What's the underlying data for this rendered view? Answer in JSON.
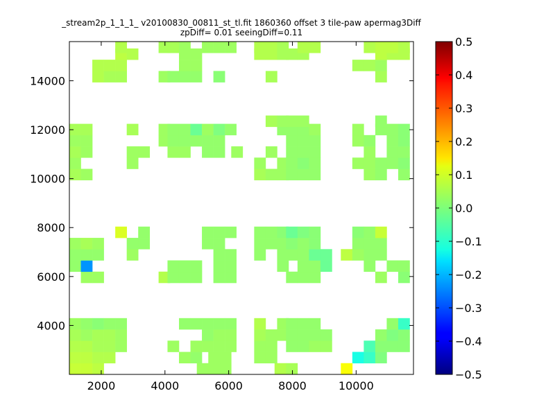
{
  "chart_data": {
    "type": "heatmap",
    "title": "_stream2p_1_1_1_ v20100830_00811_st_tl.fit 1860360 offset 3 tile-paw apermag3Diff",
    "subtitle": "zpDiff= 0.01 seeingDiff=0.11",
    "xlabel": "",
    "ylabel": "",
    "xlim": [
      1000,
      11800
    ],
    "ylim": [
      2000,
      15600
    ],
    "x_ticks": [
      "2000",
      "4000",
      "6000",
      "8000",
      "10000"
    ],
    "y_ticks": [
      "4000",
      "6000",
      "8000",
      "10000",
      "12000",
      "14000"
    ],
    "colorbar": {
      "colormap": "jet",
      "range": [
        -0.5,
        0.5
      ],
      "ticks": [
        "0.5",
        "0.4",
        "0.3",
        "0.2",
        "0.1",
        "0.0",
        "−0.1",
        "−0.2",
        "−0.3",
        "−0.4",
        "−0.5"
      ]
    },
    "cell_size": [
      360,
      460
    ],
    "cells": [
      [
        1000,
        2000,
        0.07
      ],
      [
        1360,
        2000,
        0.07
      ],
      [
        1720,
        2000,
        0.06
      ],
      [
        5000,
        2000,
        0.03
      ],
      [
        5360,
        2000,
        0.03
      ],
      [
        5720,
        2000,
        0.03
      ],
      [
        7440,
        2000,
        0.05
      ],
      [
        7800,
        2000,
        0.04
      ],
      [
        9520,
        2000,
        0.12
      ],
      [
        1000,
        2460,
        0.06
      ],
      [
        1360,
        2460,
        0.06
      ],
      [
        1720,
        2460,
        0.05
      ],
      [
        2080,
        2460,
        0.05
      ],
      [
        4440,
        2460,
        0.03
      ],
      [
        4800,
        2460,
        0.02
      ],
      [
        5360,
        2460,
        0.03
      ],
      [
        5720,
        2460,
        0.03
      ],
      [
        6800,
        2460,
        0.03
      ],
      [
        7160,
        2460,
        0.03
      ],
      [
        9880,
        2460,
        -0.1
      ],
      [
        10240,
        2460,
        -0.07
      ],
      [
        10600,
        2460,
        0.0
      ],
      [
        1000,
        2920,
        0.05
      ],
      [
        1360,
        2920,
        0.05
      ],
      [
        1720,
        2920,
        0.04
      ],
      [
        2080,
        2920,
        0.04
      ],
      [
        2440,
        2920,
        0.03
      ],
      [
        4080,
        2920,
        0.03
      ],
      [
        4800,
        2920,
        0.03
      ],
      [
        5160,
        2920,
        0.03
      ],
      [
        5520,
        2920,
        0.03
      ],
      [
        5880,
        2920,
        0.03
      ],
      [
        6800,
        2920,
        0.03
      ],
      [
        7160,
        2920,
        0.03
      ],
      [
        7800,
        2920,
        0.02
      ],
      [
        8160,
        2920,
        0.02
      ],
      [
        8520,
        2920,
        0.03
      ],
      [
        8880,
        2920,
        0.03
      ],
      [
        10240,
        2920,
        -0.05
      ],
      [
        10600,
        2920,
        0.01
      ],
      [
        10960,
        2920,
        0.01
      ],
      [
        11320,
        2920,
        0.01
      ],
      [
        1000,
        3380,
        0.04
      ],
      [
        1360,
        3380,
        0.03
      ],
      [
        1720,
        3380,
        0.04
      ],
      [
        2080,
        3380,
        0.04
      ],
      [
        2440,
        3380,
        0.03
      ],
      [
        5160,
        3380,
        0.02
      ],
      [
        5520,
        3380,
        0.03
      ],
      [
        5880,
        3380,
        0.03
      ],
      [
        6800,
        3380,
        0.04
      ],
      [
        7160,
        3380,
        0.03
      ],
      [
        7520,
        3380,
        0.03
      ],
      [
        7800,
        3380,
        0.02
      ],
      [
        8160,
        3380,
        0.02
      ],
      [
        8520,
        3380,
        0.02
      ],
      [
        8880,
        3380,
        0.02
      ],
      [
        10600,
        3380,
        0.02
      ],
      [
        10960,
        3380,
        0.0
      ],
      [
        11320,
        3380,
        0.01
      ],
      [
        1000,
        3840,
        0.03
      ],
      [
        1360,
        3840,
        0.02
      ],
      [
        1720,
        3840,
        0.01
      ],
      [
        2080,
        3840,
        0.02
      ],
      [
        2440,
        3840,
        0.02
      ],
      [
        4440,
        3840,
        0.02
      ],
      [
        4800,
        3840,
        0.02
      ],
      [
        5160,
        3840,
        0.02
      ],
      [
        5520,
        3840,
        0.02
      ],
      [
        5880,
        3840,
        0.02
      ],
      [
        6800,
        3840,
        0.05
      ],
      [
        7520,
        3840,
        0.03
      ],
      [
        7800,
        3840,
        0.02
      ],
      [
        8160,
        3840,
        0.02
      ],
      [
        8520,
        3840,
        0.02
      ],
      [
        10960,
        3840,
        0.02
      ],
      [
        11320,
        3840,
        -0.07
      ],
      [
        1360,
        5740,
        0.03
      ],
      [
        1720,
        5740,
        0.03
      ],
      [
        3800,
        5740,
        0.05
      ],
      [
        4080,
        5740,
        0.02
      ],
      [
        4440,
        5740,
        0.02
      ],
      [
        4800,
        5740,
        0.02
      ],
      [
        5520,
        5740,
        0.02
      ],
      [
        5880,
        5740,
        0.02
      ],
      [
        7800,
        5740,
        0.02
      ],
      [
        8160,
        5740,
        0.02
      ],
      [
        8520,
        5740,
        0.02
      ],
      [
        10600,
        5740,
        0.03
      ],
      [
        11320,
        5740,
        0.01
      ],
      [
        1000,
        6200,
        0.02
      ],
      [
        1360,
        6200,
        -0.23
      ],
      [
        4080,
        6200,
        0.02
      ],
      [
        4440,
        6200,
        0.02
      ],
      [
        4800,
        6200,
        0.02
      ],
      [
        5520,
        6200,
        0.02
      ],
      [
        5880,
        6200,
        0.02
      ],
      [
        7520,
        6200,
        0.02
      ],
      [
        8160,
        6200,
        0.02
      ],
      [
        8520,
        6200,
        0.02
      ],
      [
        8880,
        6200,
        -0.02
      ],
      [
        10240,
        6200,
        0.02
      ],
      [
        10960,
        6200,
        0.02
      ],
      [
        11320,
        6200,
        0.02
      ],
      [
        1000,
        6660,
        0.02
      ],
      [
        1360,
        6660,
        0.02
      ],
      [
        1720,
        6660,
        0.02
      ],
      [
        2800,
        6660,
        0.03
      ],
      [
        5520,
        6660,
        0.02
      ],
      [
        5880,
        6660,
        0.02
      ],
      [
        6800,
        6660,
        0.02
      ],
      [
        7520,
        6660,
        0.02
      ],
      [
        7800,
        6660,
        0.02
      ],
      [
        8160,
        6660,
        0.02
      ],
      [
        8520,
        6660,
        -0.02
      ],
      [
        8880,
        6660,
        -0.02
      ],
      [
        9520,
        6660,
        0.06
      ],
      [
        9880,
        6660,
        0.03
      ],
      [
        10240,
        6660,
        0.02
      ],
      [
        10600,
        6660,
        0.02
      ],
      [
        1000,
        7120,
        0.03
      ],
      [
        1360,
        7120,
        0.04
      ],
      [
        1720,
        7120,
        0.03
      ],
      [
        2800,
        7120,
        0.02
      ],
      [
        3160,
        7120,
        0.02
      ],
      [
        5160,
        7120,
        0.02
      ],
      [
        5520,
        7120,
        0.02
      ],
      [
        6800,
        7120,
        0.02
      ],
      [
        7160,
        7120,
        0.02
      ],
      [
        7520,
        7120,
        0.02
      ],
      [
        7800,
        7120,
        0.01
      ],
      [
        8160,
        7120,
        0.02
      ],
      [
        8520,
        7120,
        0.01
      ],
      [
        9880,
        7120,
        0.02
      ],
      [
        10240,
        7120,
        0.02
      ],
      [
        10600,
        7120,
        0.02
      ],
      [
        2440,
        7580,
        0.09
      ],
      [
        3160,
        7580,
        0.02
      ],
      [
        5160,
        7580,
        0.02
      ],
      [
        5520,
        7580,
        0.02
      ],
      [
        5880,
        7580,
        0.02
      ],
      [
        6800,
        7580,
        0.02
      ],
      [
        7160,
        7580,
        0.02
      ],
      [
        7520,
        7580,
        0.01
      ],
      [
        7800,
        7580,
        -0.02
      ],
      [
        8160,
        7580,
        0.0
      ],
      [
        8520,
        7580,
        0.01
      ],
      [
        9880,
        7580,
        0.01
      ],
      [
        10240,
        7580,
        0.02
      ],
      [
        10600,
        7580,
        0.07
      ],
      [
        1000,
        9940,
        0.04
      ],
      [
        1360,
        9940,
        0.03
      ],
      [
        6800,
        9940,
        0.04
      ],
      [
        7160,
        9940,
        0.03
      ],
      [
        7520,
        9940,
        0.03
      ],
      [
        7800,
        9940,
        0.02
      ],
      [
        8160,
        9940,
        0.02
      ],
      [
        8520,
        9940,
        0.02
      ],
      [
        10240,
        9940,
        0.03
      ],
      [
        10600,
        9940,
        0.02
      ],
      [
        11320,
        9940,
        0.02
      ],
      [
        1000,
        10400,
        0.03
      ],
      [
        2800,
        10400,
        0.03
      ],
      [
        6800,
        10400,
        0.03
      ],
      [
        7520,
        10400,
        0.03
      ],
      [
        7800,
        10400,
        0.02
      ],
      [
        8160,
        10400,
        0.01
      ],
      [
        8520,
        10400,
        0.02
      ],
      [
        9880,
        10400,
        0.03
      ],
      [
        10240,
        10400,
        0.03
      ],
      [
        10600,
        10400,
        0.02
      ],
      [
        10960,
        10400,
        0.02
      ],
      [
        11320,
        10400,
        0.01
      ],
      [
        1000,
        10860,
        0.04
      ],
      [
        1360,
        10860,
        0.03
      ],
      [
        2800,
        10860,
        0.03
      ],
      [
        3160,
        10860,
        0.03
      ],
      [
        4080,
        10860,
        0.03
      ],
      [
        4440,
        10860,
        0.03
      ],
      [
        5160,
        10860,
        0.02
      ],
      [
        5520,
        10860,
        0.02
      ],
      [
        6080,
        10860,
        0.03
      ],
      [
        7160,
        10860,
        0.03
      ],
      [
        7800,
        10860,
        0.02
      ],
      [
        8160,
        10860,
        0.02
      ],
      [
        8520,
        10860,
        0.02
      ],
      [
        10240,
        10860,
        0.03
      ],
      [
        10960,
        10860,
        0.02
      ],
      [
        11320,
        10860,
        0.02
      ],
      [
        1000,
        11320,
        0.03
      ],
      [
        1360,
        11320,
        0.03
      ],
      [
        3800,
        11320,
        0.03
      ],
      [
        4080,
        11320,
        0.02
      ],
      [
        4440,
        11320,
        0.02
      ],
      [
        4800,
        11320,
        0.02
      ],
      [
        5160,
        11320,
        0.02
      ],
      [
        5520,
        11320,
        0.02
      ],
      [
        7800,
        11320,
        0.02
      ],
      [
        8160,
        11320,
        0.02
      ],
      [
        8520,
        11320,
        0.02
      ],
      [
        9880,
        11320,
        0.03
      ],
      [
        10240,
        11320,
        0.02
      ],
      [
        10960,
        11320,
        0.02
      ],
      [
        11320,
        11320,
        0.01
      ],
      [
        1000,
        11780,
        0.04
      ],
      [
        1360,
        11780,
        0.04
      ],
      [
        2800,
        11780,
        0.04
      ],
      [
        3800,
        11780,
        0.03
      ],
      [
        4080,
        11780,
        0.02
      ],
      [
        4440,
        11780,
        0.02
      ],
      [
        4800,
        11780,
        -0.02
      ],
      [
        5160,
        11780,
        0.03
      ],
      [
        5520,
        11780,
        0.0
      ],
      [
        5880,
        11780,
        0.02
      ],
      [
        7520,
        11780,
        0.02
      ],
      [
        7800,
        11780,
        0.02
      ],
      [
        8160,
        11780,
        0.02
      ],
      [
        8520,
        11780,
        0.03
      ],
      [
        9880,
        11780,
        0.03
      ],
      [
        10600,
        11780,
        0.02
      ],
      [
        10960,
        11780,
        0.02
      ],
      [
        11320,
        11780,
        0.01
      ],
      [
        7160,
        12120,
        0.04
      ],
      [
        7520,
        12120,
        0.03
      ],
      [
        7800,
        12120,
        0.03
      ],
      [
        8160,
        12120,
        0.03
      ],
      [
        10600,
        12120,
        0.02
      ],
      [
        1720,
        13940,
        0.05
      ],
      [
        2080,
        13940,
        0.04
      ],
      [
        2440,
        13940,
        0.04
      ],
      [
        3800,
        13940,
        0.03
      ],
      [
        4080,
        13940,
        0.02
      ],
      [
        4440,
        13940,
        0.02
      ],
      [
        4800,
        13940,
        0.02
      ],
      [
        5520,
        13940,
        0.01
      ],
      [
        7160,
        13940,
        0.04
      ],
      [
        10600,
        13940,
        0.04
      ],
      [
        1720,
        14400,
        0.05
      ],
      [
        2080,
        14400,
        0.05
      ],
      [
        2440,
        14400,
        0.05
      ],
      [
        4440,
        14400,
        0.03
      ],
      [
        4800,
        14400,
        0.03
      ],
      [
        9880,
        14400,
        0.04
      ],
      [
        10240,
        14400,
        0.04
      ],
      [
        10600,
        14400,
        0.03
      ],
      [
        2440,
        14860,
        0.06
      ],
      [
        2800,
        14860,
        0.05
      ],
      [
        4440,
        14860,
        0.03
      ],
      [
        4800,
        14860,
        0.03
      ],
      [
        6800,
        14860,
        0.05
      ],
      [
        7160,
        14860,
        0.05
      ],
      [
        7520,
        14860,
        0.04
      ],
      [
        7800,
        14860,
        0.04
      ],
      [
        8160,
        14860,
        0.04
      ],
      [
        10600,
        14860,
        0.06
      ],
      [
        10960,
        14860,
        0.05
      ],
      [
        11320,
        14860,
        0.05
      ],
      [
        2440,
        15140,
        0.05
      ],
      [
        3800,
        15140,
        0.04
      ],
      [
        4080,
        15140,
        0.04
      ],
      [
        4440,
        15140,
        0.03
      ],
      [
        5160,
        15140,
        0.03
      ],
      [
        5520,
        15140,
        0.03
      ],
      [
        5880,
        15140,
        0.03
      ],
      [
        6800,
        15140,
        0.05
      ],
      [
        7160,
        15140,
        0.05
      ],
      [
        7520,
        15140,
        0.04
      ],
      [
        8160,
        15140,
        0.05
      ],
      [
        8520,
        15140,
        0.05
      ],
      [
        10240,
        15140,
        0.05
      ],
      [
        10600,
        15140,
        0.06
      ],
      [
        10960,
        15140,
        0.06
      ],
      [
        11320,
        15140,
        0.05
      ]
    ]
  }
}
